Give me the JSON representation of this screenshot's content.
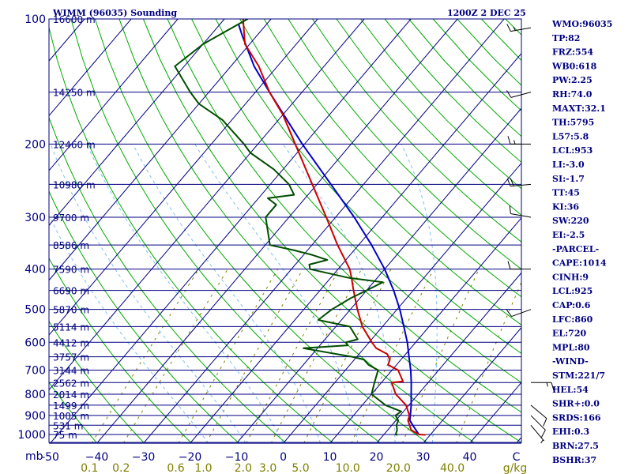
{
  "header": {
    "station_title": "WIMM (96035) Sounding",
    "time_title": "1200Z  2 DEC 25"
  },
  "colors": {
    "frame": "#000080",
    "isotherm": "#000080",
    "dry_adiabat": "#00aa00",
    "moist_adiabat": "#7ec0ee",
    "mixing_ratio": "#808000",
    "temperature": "#cc0000",
    "dewpoint": "#004d00",
    "parcel": "#0000cc",
    "wind": "#000000"
  },
  "chart_data": {
    "type": "skew-t log-p sounding",
    "title": "WIMM (96035) Sounding",
    "valid_time": "1200Z  2 DEC 25",
    "pressure_axis_label": "mb",
    "pressure_range_hpa": [
      100,
      1050
    ],
    "temperature_range_c": [
      -50,
      50
    ],
    "mixing_ratio_units": "g/kg",
    "pressure_ticks": [
      {
        "p": 100,
        "label": "100"
      },
      {
        "p": 200,
        "label": "200"
      },
      {
        "p": 300,
        "label": "300"
      },
      {
        "p": 400,
        "label": "400"
      },
      {
        "p": 500,
        "label": "500"
      },
      {
        "p": 600,
        "label": "600"
      },
      {
        "p": 700,
        "label": "700"
      },
      {
        "p": 800,
        "label": "800"
      },
      {
        "p": 900,
        "label": "900"
      },
      {
        "p": 1000,
        "label": "1000"
      }
    ],
    "temperature_ticks": [
      {
        "t": -50,
        "label": "-50"
      },
      {
        "t": -40,
        "label": "−40"
      },
      {
        "t": -30,
        "label": "−30"
      },
      {
        "t": -20,
        "label": "−20"
      },
      {
        "t": -10,
        "label": "−10"
      },
      {
        "t": 0,
        "label": "0"
      },
      {
        "t": 10,
        "label": "10"
      },
      {
        "t": 20,
        "label": "20"
      },
      {
        "t": 30,
        "label": "30"
      },
      {
        "t": 40,
        "label": "40"
      },
      {
        "t": 50,
        "label": "C"
      }
    ],
    "mixing_ratio_ticks": [
      {
        "w": 0.1,
        "label": "0.1"
      },
      {
        "w": 0.2,
        "label": "0.2"
      },
      {
        "w": 0.6,
        "label": "0.6"
      },
      {
        "w": 1.0,
        "label": "1.0"
      },
      {
        "w": 2.0,
        "label": "2.0"
      },
      {
        "w": 3.0,
        "label": "3.0"
      },
      {
        "w": 5.0,
        "label": "5.0"
      },
      {
        "w": 10.0,
        "label": "10.0"
      },
      {
        "w": 20.0,
        "label": "20.0"
      },
      {
        "w": 40.0,
        "label": "40.0"
      }
    ],
    "height_levels": [
      {
        "p": 100,
        "label": "16600 m"
      },
      {
        "p": 150,
        "label": "14250 m"
      },
      {
        "p": 200,
        "label": "12460 m"
      },
      {
        "p": 250,
        "label": "10980 m"
      },
      {
        "p": 300,
        "label": "9700 m"
      },
      {
        "p": 350,
        "label": "8586 m"
      },
      {
        "p": 400,
        "label": "7590 m"
      },
      {
        "p": 450,
        "label": "6690 m"
      },
      {
        "p": 500,
        "label": "5870 m"
      },
      {
        "p": 550,
        "label": "5114 m"
      },
      {
        "p": 600,
        "label": "4412 m"
      },
      {
        "p": 650,
        "label": "3757 m"
      },
      {
        "p": 700,
        "label": "3144 m"
      },
      {
        "p": 750,
        "label": "2562 m"
      },
      {
        "p": 800,
        "label": "2014 m"
      },
      {
        "p": 850,
        "label": "1499 m"
      },
      {
        "p": 900,
        "label": "1005 m"
      },
      {
        "p": 950,
        "label": "531 m"
      },
      {
        "p": 1000,
        "label": "75 m"
      }
    ],
    "temperature_profile": [
      {
        "p": 1002,
        "t": 29.0
      },
      {
        "p": 1000,
        "t": 27.5
      },
      {
        "p": 975,
        "t": 25.0
      },
      {
        "p": 950,
        "t": 23.8
      },
      {
        "p": 925,
        "t": 22.6
      },
      {
        "p": 900,
        "t": 22.0
      },
      {
        "p": 850,
        "t": 19.4
      },
      {
        "p": 800,
        "t": 15.2
      },
      {
        "p": 750,
        "t": 12.2
      },
      {
        "p": 745,
        "t": 14.4
      },
      {
        "p": 700,
        "t": 11.3
      },
      {
        "p": 680,
        "t": 8.2
      },
      {
        "p": 660,
        "t": 7.6
      },
      {
        "p": 640,
        "t": 6.0
      },
      {
        "p": 620,
        "t": 2.6
      },
      {
        "p": 600,
        "t": 0.6
      },
      {
        "p": 550,
        "t": -4.3
      },
      {
        "p": 500,
        "t": -8.5
      },
      {
        "p": 450,
        "t": -12.8
      },
      {
        "p": 420,
        "t": -15.5
      },
      {
        "p": 400,
        "t": -17.5
      },
      {
        "p": 350,
        "t": -24.5
      },
      {
        "p": 300,
        "t": -32.0
      },
      {
        "p": 250,
        "t": -41.0
      },
      {
        "p": 200,
        "t": -52.0
      },
      {
        "p": 170,
        "t": -60.0
      },
      {
        "p": 150,
        "t": -67.0
      },
      {
        "p": 130,
        "t": -74.0
      },
      {
        "p": 115,
        "t": -81.0
      },
      {
        "p": 100,
        "t": -86.0
      }
    ],
    "dewpoint_profile": [
      {
        "p": 1002,
        "t": 23.0
      },
      {
        "p": 1000,
        "t": 22.5
      },
      {
        "p": 975,
        "t": 22.0
      },
      {
        "p": 950,
        "t": 21.0
      },
      {
        "p": 925,
        "t": 20.5
      },
      {
        "p": 900,
        "t": 19.0
      },
      {
        "p": 880,
        "t": 19.5
      },
      {
        "p": 850,
        "t": 15.0
      },
      {
        "p": 800,
        "t": 10.0
      },
      {
        "p": 750,
        "t": 8.5
      },
      {
        "p": 700,
        "t": 7.0
      },
      {
        "p": 680,
        "t": 4.0
      },
      {
        "p": 660,
        "t": 2.0
      },
      {
        "p": 650,
        "t": -1.0
      },
      {
        "p": 620,
        "t": -13.0
      },
      {
        "p": 610,
        "t": -4.0
      },
      {
        "p": 600,
        "t": -5.0
      },
      {
        "p": 590,
        "t": -3.0
      },
      {
        "p": 550,
        "t": -7.0
      },
      {
        "p": 530,
        "t": -15.0
      },
      {
        "p": 500,
        "t": -14.0
      },
      {
        "p": 470,
        "t": -12.0
      },
      {
        "p": 450,
        "t": -10.0
      },
      {
        "p": 430,
        "t": -8.0
      },
      {
        "p": 420,
        "t": -16.0
      },
      {
        "p": 400,
        "t": -26.0
      },
      {
        "p": 390,
        "t": -27.0
      },
      {
        "p": 380,
        "t": -24.0
      },
      {
        "p": 370,
        "t": -28.0
      },
      {
        "p": 360,
        "t": -33.0
      },
      {
        "p": 350,
        "t": -39.0
      },
      {
        "p": 300,
        "t": -45.0
      },
      {
        "p": 280,
        "t": -45.0
      },
      {
        "p": 270,
        "t": -48.0
      },
      {
        "p": 265,
        "t": -43.0
      },
      {
        "p": 250,
        "t": -46.0
      },
      {
        "p": 230,
        "t": -52.0
      },
      {
        "p": 210,
        "t": -60.0
      },
      {
        "p": 200,
        "t": -63.0
      },
      {
        "p": 175,
        "t": -72.0
      },
      {
        "p": 160,
        "t": -80.0
      },
      {
        "p": 150,
        "t": -84.0
      },
      {
        "p": 130,
        "t": -92.0
      },
      {
        "p": 115,
        "t": -90.0
      },
      {
        "p": 100,
        "t": -85.0
      }
    ],
    "parcel_profile": [
      {
        "p": 1000,
        "t": 27.5
      },
      {
        "p": 950,
        "t": 24.5
      },
      {
        "p": 925,
        "t": 23.0
      },
      {
        "p": 900,
        "t": 22.2
      },
      {
        "p": 850,
        "t": 20.5
      },
      {
        "p": 800,
        "t": 18.5
      },
      {
        "p": 750,
        "t": 16.4
      },
      {
        "p": 700,
        "t": 14.0
      },
      {
        "p": 650,
        "t": 11.2
      },
      {
        "p": 600,
        "t": 8.2
      },
      {
        "p": 550,
        "t": 4.6
      },
      {
        "p": 500,
        "t": 0.6
      },
      {
        "p": 450,
        "t": -4.2
      },
      {
        "p": 400,
        "t": -10.0
      },
      {
        "p": 350,
        "t": -17.2
      },
      {
        "p": 300,
        "t": -26.0
      },
      {
        "p": 250,
        "t": -37.0
      },
      {
        "p": 200,
        "t": -50.5
      },
      {
        "p": 150,
        "t": -67.0
      },
      {
        "p": 130,
        "t": -75.0
      },
      {
        "p": 110,
        "t": -83.0
      },
      {
        "p": 103,
        "t": -86.0
      }
    ],
    "wind_barbs": [
      {
        "p": 105,
        "direction_deg": 260,
        "speed_kt": 15
      },
      {
        "p": 150,
        "direction_deg": 255,
        "speed_kt": 10
      },
      {
        "p": 200,
        "direction_deg": 270,
        "speed_kt": 15
      },
      {
        "p": 250,
        "direction_deg": 265,
        "speed_kt": 20
      },
      {
        "p": 300,
        "direction_deg": 280,
        "speed_kt": 10
      },
      {
        "p": 400,
        "direction_deg": 270,
        "speed_kt": 10
      },
      {
        "p": 500,
        "direction_deg": 250,
        "speed_kt": 10
      },
      {
        "p": 750,
        "direction_deg": 90,
        "speed_kt": 15
      },
      {
        "p": 850,
        "direction_deg": 130,
        "speed_kt": 10
      },
      {
        "p": 900,
        "direction_deg": 135,
        "speed_kt": 10
      },
      {
        "p": 950,
        "direction_deg": 140,
        "speed_kt": 5
      }
    ],
    "dry_adiabats_theta_k": [
      200,
      210,
      220,
      230,
      240,
      250,
      260,
      270,
      280,
      290,
      300,
      310,
      320,
      330,
      340,
      350,
      360,
      370,
      380,
      390,
      400,
      410,
      420,
      430,
      440,
      450,
      460,
      470,
      480,
      490,
      500,
      510
    ],
    "moist_adiabats_start_c": [
      -16,
      -8,
      0,
      8,
      16,
      24,
      32
    ],
    "mixing_ratio_lines_gkg": [
      0.1,
      0.2,
      0.6,
      1.0,
      2.0,
      3.0,
      5.0,
      10.0,
      20.0,
      40.0
    ]
  },
  "indices": [
    "WMO:96035",
    "TP:82",
    "FRZ:554",
    "WB0:618",
    "PW:2.25",
    "RH:74.0",
    "MAXT:32.1",
    "TH:5795",
    "L57:5.8",
    "LCL:953",
    "LI:-3.0",
    "SI:-1.7",
    "TT:45",
    "KI:36",
    "SW:220",
    "EI:-2.5",
    "-PARCEL-",
    "CAPE:1014",
    "CINH:9",
    "LCL:925",
    "CAP:0.6",
    "LFC:860",
    "EL:720",
    "MPL:80",
    "-WIND-",
    "STM:221/7",
    "HEL:54",
    "SHR+:0.0",
    "SRDS:166",
    "EHI:0.3",
    "BRN:27.5",
    "BSHR:37"
  ]
}
